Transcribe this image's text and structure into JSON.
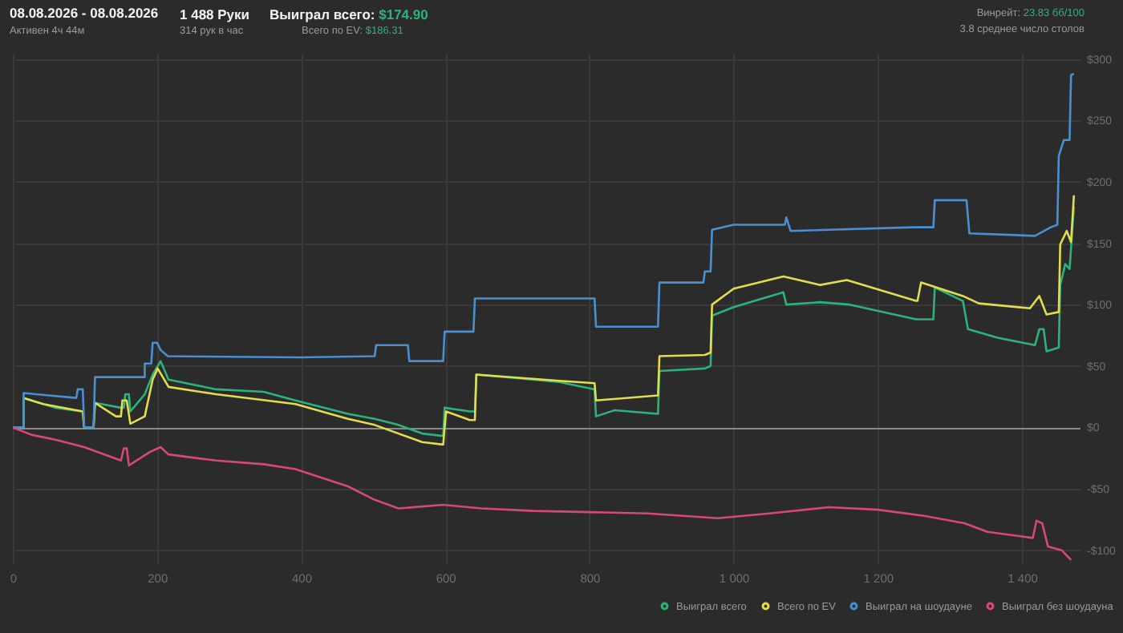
{
  "chart_data": {
    "type": "line",
    "title": "08.08.2026 - 08.08.2026",
    "subtitle": "Активен 4ч 44м",
    "annotations": [
      "1 488 Руки",
      "314 рук в час",
      "Выиграл всего: $174.90",
      "Всего по EV: $186.31",
      "Винрейт: 23.83 бб/100",
      "3.8 среднее число столов"
    ],
    "xlim": [
      0,
      1480
    ],
    "xticks": [
      0,
      200,
      400,
      600,
      800,
      {
        "value": 1000,
        "label": "1 000"
      },
      {
        "value": 1200,
        "label": "1 200"
      },
      {
        "value": 1400,
        "label": "1 400"
      }
    ],
    "ylim": [
      -110,
      305
    ],
    "yticks": [
      {
        "value": -100,
        "label": "-$100"
      },
      {
        "value": -50,
        "label": "-$50"
      },
      {
        "value": 0,
        "label": "$0"
      },
      {
        "value": 50,
        "label": "$50"
      },
      {
        "value": 100,
        "label": "$100"
      },
      {
        "value": 150,
        "label": "$150"
      },
      {
        "value": 200,
        "label": "$200"
      },
      {
        "value": 250,
        "label": "$250"
      },
      {
        "value": 300,
        "label": "$300"
      }
    ],
    "grid": true,
    "legend": "bottom right",
    "marker": "none",
    "line_style": "solid",
    "series": [
      {
        "name": "Выиграл всего",
        "color": "#2bb37a",
        "x": [
          15,
          59,
          97,
          99,
          112,
          114,
          150,
          154,
          156,
          161,
          163,
          183,
          194,
          205,
          216,
          282,
          348,
          392,
          465,
          502,
          535,
          568,
          597,
          599,
          634,
          641,
          643,
          758,
          807,
          809,
          835,
          895,
          897,
          960,
          968,
          970,
          1000,
          1069,
          1073,
          1120,
          1161,
          1253,
          1277,
          1279,
          1318,
          1325,
          1366,
          1418,
          1424,
          1430,
          1434,
          1451,
          1453,
          1460,
          1466,
          1472
        ],
        "values": [
          24,
          16,
          13,
          0,
          0,
          20,
          16,
          16,
          27,
          27,
          13,
          27,
          43,
          54,
          39,
          31,
          29,
          22,
          11,
          7,
          2,
          -5,
          -7,
          16,
          13,
          13,
          43,
          37,
          31,
          9,
          14,
          11,
          46,
          48,
          50,
          91,
          98,
          110,
          100,
          102,
          100,
          88,
          88,
          114,
          103,
          80,
          73,
          67,
          80,
          80,
          62,
          65,
          116,
          133,
          129,
          180
        ]
      },
      {
        "name": "Всего по EV",
        "color": "#e3dc4c",
        "x": [
          0,
          15,
          15,
          42,
          97,
          99,
          112,
          114,
          143,
          150,
          152,
          158,
          163,
          183,
          194,
          201,
          216,
          282,
          392,
          465,
          502,
          568,
          597,
          601,
          634,
          641,
          643,
          758,
          807,
          809,
          895,
          897,
          960,
          968,
          970,
          1000,
          1069,
          1120,
          1157,
          1253,
          1255,
          1260,
          1318,
          1340,
          1411,
          1424,
          1434,
          1451,
          1453,
          1462,
          1468,
          1472
        ],
        "values": [
          0,
          0,
          24,
          19,
          13,
          0,
          0,
          20,
          9,
          9,
          22,
          22,
          3,
          9,
          39,
          48,
          33,
          27,
          19,
          7,
          2,
          -12,
          -14,
          13,
          6,
          6,
          43,
          38,
          36,
          22,
          26,
          58,
          59,
          61,
          100,
          113,
          123,
          116,
          120,
          103,
          103,
          118,
          107,
          101,
          97,
          107,
          92,
          94,
          149,
          160,
          151,
          189
        ]
      },
      {
        "name": "Выиграл на шоудауне",
        "color": "#4a8fd1",
        "x": [
          0,
          15,
          15,
          50,
          88,
          90,
          97,
          99,
          112,
          114,
          183,
          183,
          192,
          194,
          200,
          205,
          215,
          400,
          502,
          504,
          548,
          550,
          597,
          599,
          639,
          641,
          758,
          807,
          809,
          895,
          897,
          958,
          960,
          968,
          970,
          1000,
          1071,
          1073,
          1079,
          1250,
          1277,
          1279,
          1323,
          1327,
          1418,
          1440,
          1449,
          1451,
          1458,
          1466,
          1468,
          1472
        ],
        "values": [
          0,
          0,
          28,
          26,
          24,
          31,
          31,
          0,
          0,
          41,
          41,
          52,
          52,
          69,
          69,
          63,
          58,
          57,
          58,
          67,
          67,
          54,
          54,
          78,
          78,
          105,
          105,
          105,
          82,
          82,
          118,
          118,
          127,
          127,
          161,
          165,
          165,
          171,
          160,
          163,
          163,
          185,
          185,
          158,
          156,
          163,
          165,
          221,
          234,
          234,
          287,
          288
        ]
      },
      {
        "name": "Выиграл без шоудауна",
        "color": "#d6487a",
        "x": [
          0,
          26,
          59,
          99,
          150,
          154,
          158,
          161,
          190,
          205,
          216,
          282,
          348,
          392,
          465,
          502,
          535,
          597,
          650,
          722,
          800,
          880,
          978,
          1050,
          1132,
          1200,
          1264,
          1320,
          1352,
          1415,
          1420,
          1428,
          1436,
          1455,
          1468
        ],
        "values": [
          0,
          -6,
          -10,
          -16,
          -27,
          -17,
          -17,
          -31,
          -20,
          -16,
          -22,
          -27,
          -30,
          -34,
          -48,
          -59,
          -66,
          -63,
          -66,
          -68,
          -69,
          -70,
          -74,
          -70,
          -65,
          -67,
          -72,
          -78,
          -85,
          -90,
          -76,
          -78,
          -97,
          -100,
          -108
        ]
      }
    ]
  }
}
